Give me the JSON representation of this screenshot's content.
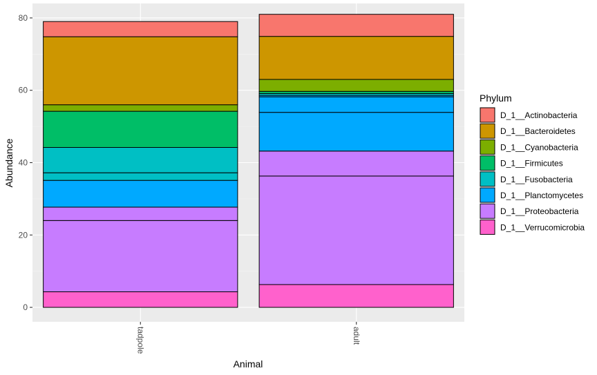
{
  "chart_data": {
    "type": "bar",
    "stacked": true,
    "xlabel": "Animal",
    "ylabel": "Abundance",
    "categories": [
      "tadpole",
      "adult"
    ],
    "ylim": [
      -4,
      84
    ],
    "yticks": [
      0,
      20,
      40,
      60,
      80
    ],
    "grid": true,
    "legend": {
      "title": "Phylum",
      "position": "right"
    },
    "series": [
      {
        "name": "D_1__Verrucomicrobia",
        "color": "#FF61CC",
        "values": [
          4.3,
          6.3
        ]
      },
      {
        "name": "D_1__Proteobacteria",
        "color": "#C77CFF",
        "values": [
          23.4,
          36.9
        ]
      },
      {
        "name": "D_1__Planctomycetes",
        "color": "#00A9FF",
        "values": [
          7.4,
          15.4
        ]
      },
      {
        "name": "D_1__Fusobacteria",
        "color": "#00BFC4",
        "values": [
          9.1,
          0.5
        ]
      },
      {
        "name": "D_1__Firmicutes",
        "color": "#00BE67",
        "values": [
          10.0,
          0.6
        ]
      },
      {
        "name": "D_1__Cyanobacteria",
        "color": "#7CAE00",
        "values": [
          1.8,
          3.3
        ]
      },
      {
        "name": "D_1__Bacteroidetes",
        "color": "#CD9600",
        "values": [
          18.8,
          11.9
        ]
      },
      {
        "name": "D_1__Actinobacteria",
        "color": "#F8766D",
        "values": [
          4.2,
          6.1
        ]
      }
    ],
    "bar_segments": {
      "tadpole": [
        {
          "phylum": "D_1__Verrucomicrobia",
          "parts": [
            4.3
          ]
        },
        {
          "phylum": "D_1__Proteobacteria",
          "parts": [
            19.7,
            3.7
          ]
        },
        {
          "phylum": "D_1__Planctomycetes",
          "parts": [
            7.4
          ]
        },
        {
          "phylum": "D_1__Fusobacteria",
          "parts": [
            2.1,
            7.0
          ]
        },
        {
          "phylum": "D_1__Firmicutes",
          "parts": [
            10.0
          ]
        },
        {
          "phylum": "D_1__Cyanobacteria",
          "parts": [
            1.8
          ]
        },
        {
          "phylum": "D_1__Bacteroidetes",
          "parts": [
            18.8
          ]
        },
        {
          "phylum": "D_1__Actinobacteria",
          "parts": [
            4.2
          ]
        }
      ],
      "adult": [
        {
          "phylum": "D_1__Verrucomicrobia",
          "parts": [
            6.3
          ]
        },
        {
          "phylum": "D_1__Proteobacteria",
          "parts": [
            30.0,
            6.9
          ]
        },
        {
          "phylum": "D_1__Planctomycetes",
          "parts": [
            10.7,
            4.3,
            0.4
          ]
        },
        {
          "phylum": "D_1__Fusobacteria",
          "parts": [
            0.5
          ]
        },
        {
          "phylum": "D_1__Firmicutes",
          "parts": [
            0.6
          ]
        },
        {
          "phylum": "D_1__Cyanobacteria",
          "parts": [
            3.3
          ]
        },
        {
          "phylum": "D_1__Bacteroidetes",
          "parts": [
            11.9
          ]
        },
        {
          "phylum": "D_1__Actinobacteria",
          "parts": [
            6.1
          ]
        }
      ]
    },
    "legend_order": [
      "D_1__Actinobacteria",
      "D_1__Bacteroidetes",
      "D_1__Cyanobacteria",
      "D_1__Firmicutes",
      "D_1__Fusobacteria",
      "D_1__Planctomycetes",
      "D_1__Proteobacteria",
      "D_1__Verrucomicrobia"
    ]
  }
}
